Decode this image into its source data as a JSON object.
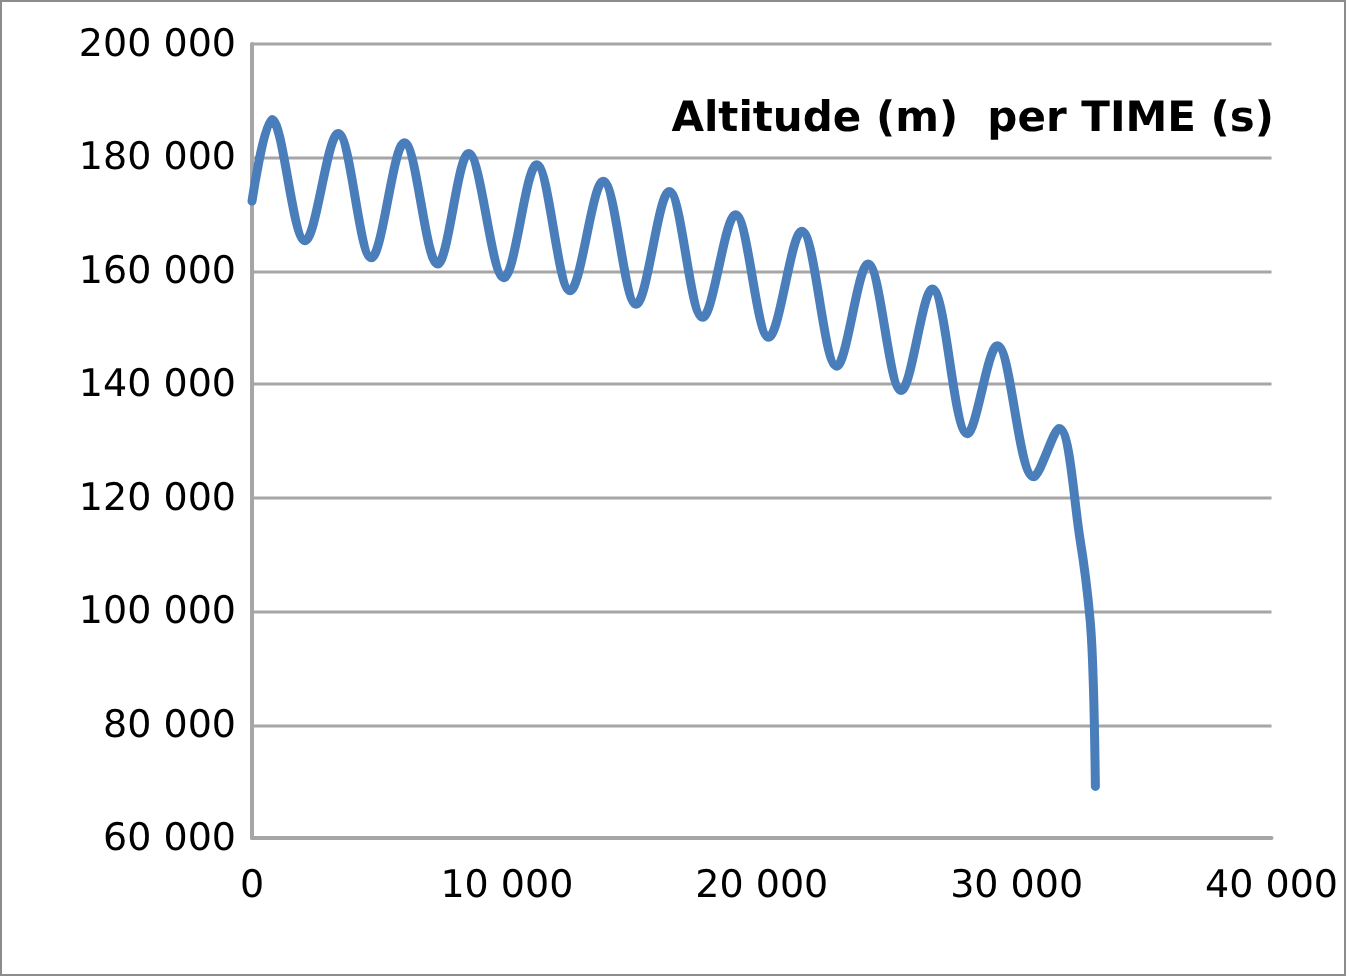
{
  "chart_data": {
    "type": "line",
    "title": "Altitude (m)  per TIME (s)",
    "x": [
      0,
      780,
      2080,
      3380,
      4680,
      5980,
      7280,
      8500,
      9880,
      11170,
      12480,
      13780,
      15070,
      16370,
      17680,
      18970,
      20270,
      21570,
      22940,
      24170,
      25470,
      26690,
      28070,
      29240,
      30670,
      31660,
      32490,
      32880,
      33010,
      33090
    ],
    "series": [
      {
        "color": "#4a7ebb",
        "values": [
          172300,
          186700,
          165300,
          184200,
          162300,
          182600,
          161200,
          180700,
          158800,
          178700,
          156500,
          175800,
          154100,
          174000,
          151800,
          169900,
          148300,
          167000,
          143200,
          161200,
          138900,
          156800,
          131300,
          146800,
          123700,
          132200,
          112600,
          98600,
          86900,
          69100
        ]
      }
    ],
    "xlim": [
      0,
      40000
    ],
    "xticks": [
      0,
      {
        "value": 10000,
        "label": "10 000"
      },
      {
        "value": 20000,
        "label": "20 000"
      },
      {
        "value": 30000,
        "label": "30 000"
      },
      {
        "value": 40000,
        "label": "40 000"
      }
    ],
    "ylim": [
      60000,
      200000
    ],
    "yticks": [
      {
        "value": 60000,
        "label": "60 000"
      },
      {
        "value": 80000,
        "label": "80 000"
      },
      {
        "value": 100000,
        "label": "100 000"
      },
      {
        "value": 120000,
        "label": "120 000"
      },
      {
        "value": 140000,
        "label": "140 000"
      },
      {
        "value": 160000,
        "label": "160 000"
      },
      {
        "value": 180000,
        "label": "180 000"
      },
      {
        "value": 200000,
        "label": "200 000"
      }
    ],
    "grid": "y",
    "marker": "none",
    "line_style": "solid"
  }
}
